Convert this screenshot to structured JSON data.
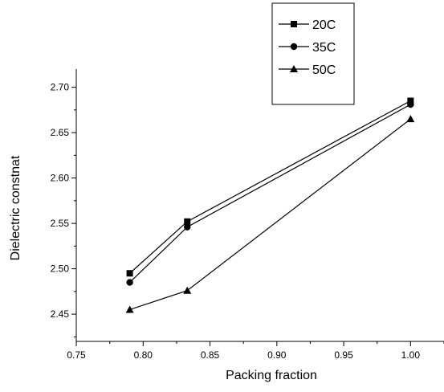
{
  "chart_data": {
    "type": "line",
    "title": "",
    "xlabel": "Packing fraction",
    "ylabel": "Dielectric constnat",
    "xlim": [
      0.75,
      1.025
    ],
    "ylim": [
      2.42,
      2.72
    ],
    "x_ticks": [
      0.75,
      0.8,
      0.85,
      0.9,
      0.95,
      1.0
    ],
    "x_tick_labels": [
      "0.75",
      "0.80",
      "0.85",
      "0.90",
      "0.95",
      "1.00"
    ],
    "y_ticks": [
      2.45,
      2.5,
      2.55,
      2.6,
      2.65,
      2.7
    ],
    "y_tick_labels": [
      "2.45",
      "2.50",
      "2.55",
      "2.60",
      "2.65",
      "2.70"
    ],
    "grid": false,
    "legend_position": "top-right",
    "line_color": "#000000",
    "series": [
      {
        "name": "20C",
        "marker": "square",
        "x": [
          0.79,
          0.833,
          1.0
        ],
        "y": [
          2.495,
          2.552,
          2.685
        ]
      },
      {
        "name": "35C",
        "marker": "circle",
        "x": [
          0.79,
          0.833,
          1.0
        ],
        "y": [
          2.485,
          2.546,
          2.681
        ]
      },
      {
        "name": "50C",
        "marker": "triangle",
        "x": [
          0.79,
          0.833,
          1.0
        ],
        "y": [
          2.455,
          2.476,
          2.665
        ]
      }
    ]
  }
}
